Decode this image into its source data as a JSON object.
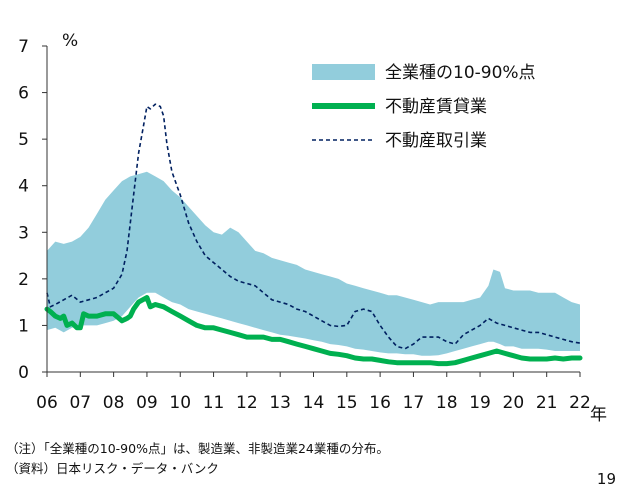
{
  "chart_data": {
    "type": "area",
    "title": "",
    "ylabel": "%",
    "xlabel": "年",
    "ylim": [
      0,
      7
    ],
    "yticks": [
      0,
      1,
      2,
      3,
      4,
      5,
      6,
      7
    ],
    "xlim": [
      2006,
      2022
    ],
    "xticks": [
      {
        "x": 2006,
        "label": "06"
      },
      {
        "x": 2007,
        "label": "07"
      },
      {
        "x": 2008,
        "label": "08"
      },
      {
        "x": 2009,
        "label": "09"
      },
      {
        "x": 2010,
        "label": "10"
      },
      {
        "x": 2011,
        "label": "11"
      },
      {
        "x": 2012,
        "label": "12"
      },
      {
        "x": 2013,
        "label": "13"
      },
      {
        "x": 2014,
        "label": "14"
      },
      {
        "x": 2015,
        "label": "15"
      },
      {
        "x": 2016,
        "label": "16"
      },
      {
        "x": 2017,
        "label": "17"
      },
      {
        "x": 2018,
        "label": "18"
      },
      {
        "x": 2019,
        "label": "19"
      },
      {
        "x": 2020,
        "label": "20"
      },
      {
        "x": 2021,
        "label": "21"
      },
      {
        "x": 2022,
        "label": "22"
      }
    ],
    "grid": false,
    "legend_position": "top-right",
    "series": [
      {
        "name": "全業種の10-90%点",
        "kind": "band",
        "color": "#92CDDC",
        "x": [
          2006.0,
          2006.25,
          2006.5,
          2006.75,
          2007.0,
          2007.25,
          2007.5,
          2007.75,
          2008.0,
          2008.25,
          2008.5,
          2008.75,
          2009.0,
          2009.25,
          2009.5,
          2009.75,
          2010.0,
          2010.25,
          2010.5,
          2010.75,
          2011.0,
          2011.25,
          2011.5,
          2011.75,
          2012.0,
          2012.25,
          2012.5,
          2012.75,
          2013.0,
          2013.25,
          2013.5,
          2013.75,
          2014.0,
          2014.25,
          2014.5,
          2014.75,
          2015.0,
          2015.25,
          2015.5,
          2015.75,
          2016.0,
          2016.25,
          2016.5,
          2016.75,
          2017.0,
          2017.25,
          2017.5,
          2017.75,
          2018.0,
          2018.25,
          2018.5,
          2018.75,
          2019.0,
          2019.25,
          2019.4,
          2019.6,
          2019.75,
          2020.0,
          2020.25,
          2020.5,
          2020.75,
          2021.0,
          2021.25,
          2021.5,
          2021.75,
          2022.0
        ],
        "upper": [
          2.6,
          2.8,
          2.75,
          2.8,
          2.9,
          3.1,
          3.4,
          3.7,
          3.9,
          4.1,
          4.2,
          4.25,
          4.3,
          4.2,
          4.1,
          3.9,
          3.75,
          3.55,
          3.35,
          3.15,
          3.0,
          2.95,
          3.1,
          3.0,
          2.8,
          2.6,
          2.55,
          2.45,
          2.4,
          2.35,
          2.3,
          2.2,
          2.15,
          2.1,
          2.05,
          2.0,
          1.9,
          1.85,
          1.8,
          1.75,
          1.7,
          1.65,
          1.65,
          1.6,
          1.55,
          1.5,
          1.45,
          1.5,
          1.5,
          1.5,
          1.5,
          1.55,
          1.6,
          1.85,
          2.2,
          2.15,
          1.8,
          1.75,
          1.75,
          1.75,
          1.7,
          1.7,
          1.7,
          1.6,
          1.5,
          1.45
        ],
        "lower": [
          0.9,
          0.95,
          0.85,
          0.95,
          1.0,
          1.0,
          1.0,
          1.05,
          1.1,
          1.2,
          1.4,
          1.6,
          1.7,
          1.7,
          1.6,
          1.5,
          1.45,
          1.35,
          1.3,
          1.25,
          1.2,
          1.15,
          1.1,
          1.05,
          1.0,
          0.95,
          0.9,
          0.85,
          0.8,
          0.78,
          0.75,
          0.72,
          0.68,
          0.65,
          0.6,
          0.58,
          0.55,
          0.5,
          0.48,
          0.45,
          0.42,
          0.4,
          0.4,
          0.38,
          0.38,
          0.35,
          0.35,
          0.36,
          0.4,
          0.45,
          0.5,
          0.55,
          0.6,
          0.65,
          0.65,
          0.6,
          0.55,
          0.55,
          0.5,
          0.5,
          0.5,
          0.48,
          0.45,
          0.45,
          0.45,
          0.45
        ]
      },
      {
        "name": "不動産賃貸業",
        "kind": "line",
        "color": "#00B050",
        "x": [
          2006.0,
          2006.1,
          2006.25,
          2006.4,
          2006.5,
          2006.6,
          2006.75,
          2006.9,
          2007.0,
          2007.1,
          2007.25,
          2007.5,
          2007.75,
          2008.0,
          2008.25,
          2008.4,
          2008.5,
          2008.6,
          2008.75,
          2009.0,
          2009.1,
          2009.25,
          2009.5,
          2009.75,
          2010.0,
          2010.25,
          2010.5,
          2010.75,
          2011.0,
          2011.25,
          2011.5,
          2011.75,
          2012.0,
          2012.25,
          2012.5,
          2012.75,
          2013.0,
          2013.25,
          2013.5,
          2013.75,
          2014.0,
          2014.25,
          2014.5,
          2014.75,
          2015.0,
          2015.25,
          2015.5,
          2015.75,
          2016.0,
          2016.25,
          2016.5,
          2016.75,
          2017.0,
          2017.25,
          2017.5,
          2017.75,
          2018.0,
          2018.25,
          2018.5,
          2018.75,
          2019.0,
          2019.25,
          2019.5,
          2019.75,
          2020.0,
          2020.25,
          2020.5,
          2020.75,
          2021.0,
          2021.25,
          2021.5,
          2021.75,
          2022.0
        ],
        "values": [
          1.35,
          1.3,
          1.2,
          1.15,
          1.2,
          1.0,
          1.05,
          0.95,
          0.95,
          1.25,
          1.2,
          1.2,
          1.25,
          1.25,
          1.1,
          1.15,
          1.2,
          1.35,
          1.5,
          1.6,
          1.4,
          1.45,
          1.4,
          1.3,
          1.2,
          1.1,
          1.0,
          0.95,
          0.95,
          0.9,
          0.85,
          0.8,
          0.75,
          0.75,
          0.75,
          0.7,
          0.7,
          0.65,
          0.6,
          0.55,
          0.5,
          0.45,
          0.4,
          0.38,
          0.35,
          0.3,
          0.28,
          0.28,
          0.25,
          0.22,
          0.2,
          0.2,
          0.2,
          0.2,
          0.2,
          0.18,
          0.18,
          0.2,
          0.25,
          0.3,
          0.35,
          0.4,
          0.45,
          0.4,
          0.35,
          0.3,
          0.28,
          0.28,
          0.28,
          0.3,
          0.28,
          0.3,
          0.3
        ]
      },
      {
        "name": "不動産取引業",
        "kind": "dashed-line",
        "color": "#002060",
        "x": [
          2006.0,
          2006.1,
          2006.25,
          2006.5,
          2006.75,
          2007.0,
          2007.25,
          2007.5,
          2007.75,
          2008.0,
          2008.25,
          2008.4,
          2008.5,
          2008.6,
          2008.75,
          2008.9,
          2009.0,
          2009.1,
          2009.25,
          2009.4,
          2009.5,
          2009.6,
          2009.75,
          2009.9,
          2010.0,
          2010.25,
          2010.5,
          2010.75,
          2011.0,
          2011.25,
          2011.5,
          2011.75,
          2012.0,
          2012.25,
          2012.5,
          2012.75,
          2013.0,
          2013.25,
          2013.5,
          2013.75,
          2014.0,
          2014.25,
          2014.5,
          2014.75,
          2015.0,
          2015.25,
          2015.5,
          2015.75,
          2016.0,
          2016.25,
          2016.5,
          2016.75,
          2017.0,
          2017.25,
          2017.5,
          2017.75,
          2018.0,
          2018.25,
          2018.5,
          2018.75,
          2019.0,
          2019.25,
          2019.5,
          2019.75,
          2020.0,
          2020.25,
          2020.5,
          2020.75,
          2021.0,
          2021.25,
          2021.5,
          2021.75,
          2022.0
        ],
        "values": [
          1.7,
          1.4,
          1.45,
          1.55,
          1.65,
          1.5,
          1.55,
          1.6,
          1.7,
          1.8,
          2.1,
          2.6,
          3.2,
          3.8,
          4.7,
          5.3,
          5.7,
          5.65,
          5.75,
          5.7,
          5.5,
          4.9,
          4.3,
          4.0,
          3.8,
          3.2,
          2.8,
          2.5,
          2.35,
          2.2,
          2.05,
          1.95,
          1.9,
          1.85,
          1.7,
          1.55,
          1.5,
          1.45,
          1.35,
          1.3,
          1.2,
          1.1,
          1.0,
          0.98,
          1.0,
          1.3,
          1.35,
          1.3,
          1.0,
          0.75,
          0.55,
          0.5,
          0.6,
          0.75,
          0.75,
          0.75,
          0.65,
          0.6,
          0.8,
          0.9,
          1.0,
          1.15,
          1.05,
          1.0,
          0.95,
          0.9,
          0.85,
          0.85,
          0.8,
          0.75,
          0.7,
          0.65,
          0.62
        ]
      }
    ]
  },
  "notes": {
    "note1": "（注）「全業種の10-90%点」は、製造業、非製造業24業種の分布。",
    "note2": "（資料）日本リスク・データ・バンク"
  },
  "page_number": "19"
}
